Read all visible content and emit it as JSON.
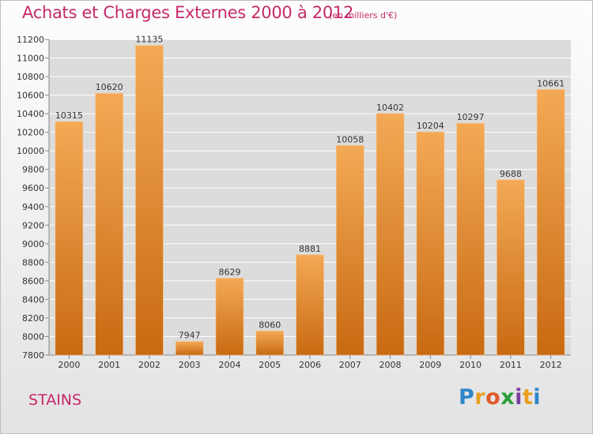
{
  "page": {
    "title": "Achats et Charges Externes 2000 à 2012",
    "subtitle": "(en milliers d'€)",
    "city": "STAINS",
    "logo": {
      "letters": [
        {
          "char": "P",
          "color": "#2e86c8"
        },
        {
          "char": "r",
          "color": "#e8a020"
        },
        {
          "char": "o",
          "color": "#e05a2a"
        },
        {
          "char": "x",
          "color": "#2a9e3a"
        },
        {
          "char": "i",
          "color": "#7a3fa0"
        },
        {
          "char": "t",
          "color": "#e8a020"
        },
        {
          "char": "i",
          "color": "#2e86c8"
        }
      ]
    }
  },
  "colors": {
    "accent": "#c62a6a",
    "bar_top": "#f4a955",
    "bar_bottom": "#c86a12",
    "grid": "#ffffff",
    "plot_bg": "#dcdcdc"
  },
  "chart_data": {
    "type": "bar",
    "title": "Achats et Charges Externes 2000 à 2012",
    "subtitle": "(en milliers d'€)",
    "categories": [
      "2000",
      "2001",
      "2002",
      "2003",
      "2004",
      "2005",
      "2006",
      "2007",
      "2008",
      "2009",
      "2010",
      "2011",
      "2012"
    ],
    "values": [
      10315,
      10620,
      11135,
      7947,
      8629,
      8060,
      8881,
      10058,
      10402,
      10204,
      10297,
      9688,
      10661
    ],
    "ylim": [
      7800,
      11200
    ],
    "yticks": [
      7800,
      8000,
      8200,
      8400,
      8600,
      8800,
      9000,
      9200,
      9400,
      9600,
      9800,
      10000,
      10200,
      10400,
      10600,
      10800,
      11000,
      11200
    ],
    "grid": true,
    "legend": "none"
  }
}
